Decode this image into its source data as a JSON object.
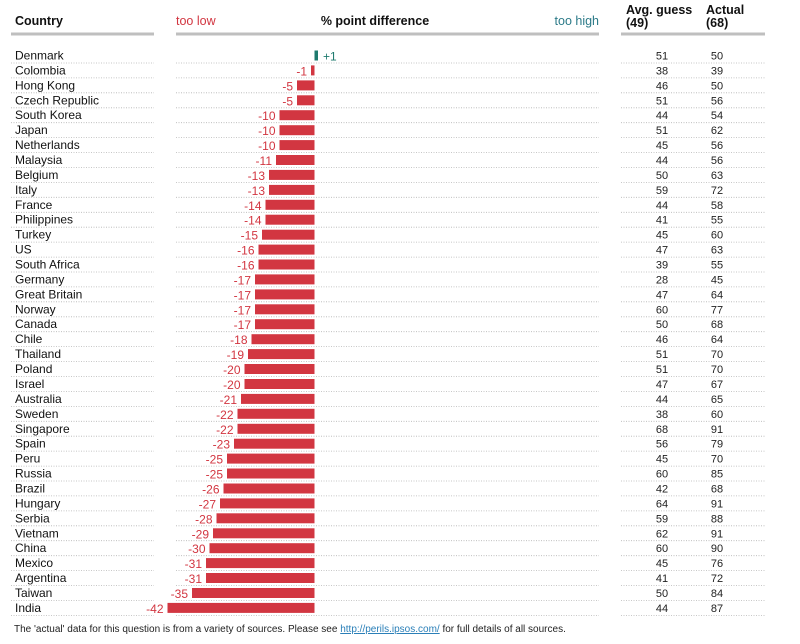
{
  "headers": {
    "country": "Country",
    "too_low": "too low",
    "difference": "% point difference",
    "too_high": "too high",
    "avg_guess": "Avg. guess",
    "avg_guess_sub": "(49)",
    "actual": "Actual",
    "actual_sub": "(68)"
  },
  "colors": {
    "negative": "#d23641",
    "positive": "#1e7a6e",
    "too_high_text": "#2b7a88",
    "rule": "#bfbfbf"
  },
  "footer": {
    "text_before": "The 'actual' data for this question is from a variety of sources. Please see ",
    "link": "http://perils.ipsos.com/",
    "text_after": " for full details of all sources."
  },
  "chart_data": {
    "type": "bar",
    "orientation": "horizontal",
    "xlabel": "% point difference",
    "categories": [
      "Denmark",
      "Colombia",
      "Hong Kong",
      "Czech Republic",
      "South Korea",
      "Japan",
      "Netherlands",
      "Malaysia",
      "Belgium",
      "Italy",
      "France",
      "Philippines",
      "Turkey",
      "US",
      "South Africa",
      "Germany",
      "Great Britain",
      "Norway",
      "Canada",
      "Chile",
      "Thailand",
      "Poland",
      "Israel",
      "Australia",
      "Sweden",
      "Singapore",
      "Spain",
      "Peru",
      "Russia",
      "Brazil",
      "Hungary",
      "Serbia",
      "Vietnam",
      "China",
      "Mexico",
      "Argentina",
      "Taiwan",
      "India"
    ],
    "difference_labels": [
      "+1",
      "-1",
      "-5",
      "-5",
      "-10",
      "-10",
      "-10",
      "-11",
      "-13",
      "-13",
      "-14",
      "-14",
      "-15",
      "-16",
      "-16",
      "-17",
      "-17",
      "-17",
      "-17",
      "-18",
      "-19",
      "-20",
      "-20",
      "-21",
      "-22",
      "-22",
      "-23",
      "-25",
      "-25",
      "-26",
      "-27",
      "-28",
      "-29",
      "-30",
      "-31",
      "-31",
      "-35",
      "-42"
    ],
    "difference": [
      1,
      -1,
      -5,
      -5,
      -10,
      -10,
      -10,
      -11,
      -13,
      -13,
      -14,
      -14,
      -15,
      -16,
      -16,
      -17,
      -17,
      -17,
      -17,
      -18,
      -19,
      -20,
      -20,
      -21,
      -22,
      -22,
      -23,
      -25,
      -25,
      -26,
      -27,
      -28,
      -29,
      -30,
      -31,
      -31,
      -35,
      -42
    ],
    "avg_guess": [
      51,
      38,
      46,
      51,
      44,
      51,
      45,
      44,
      50,
      59,
      44,
      41,
      45,
      47,
      39,
      28,
      47,
      60,
      50,
      46,
      51,
      51,
      47,
      44,
      38,
      68,
      56,
      45,
      60,
      42,
      64,
      59,
      62,
      60,
      45,
      41,
      50,
      44
    ],
    "actual": [
      50,
      39,
      50,
      56,
      54,
      62,
      56,
      56,
      63,
      72,
      58,
      55,
      60,
      63,
      55,
      45,
      64,
      77,
      68,
      64,
      70,
      70,
      67,
      65,
      60,
      91,
      79,
      70,
      85,
      68,
      91,
      88,
      91,
      90,
      76,
      72,
      84,
      87
    ]
  }
}
